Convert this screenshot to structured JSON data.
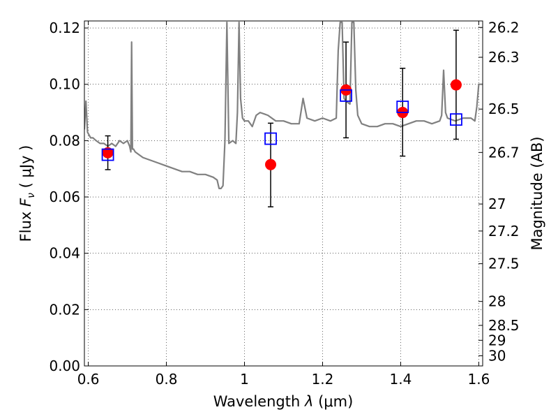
{
  "chart_data": {
    "type": "scatter",
    "title": "",
    "xlabel": "Wavelength  λ (μm)",
    "ylabel": "Flux  F_ν  ( μJy )",
    "ylabel_parts": {
      "pre": "Flux  ",
      "sym": "F",
      "sub": "ν",
      "post": "  ( μJy )"
    },
    "xlabel_parts": {
      "pre": "Wavelength  ",
      "sym": "λ",
      "post": " (μm)"
    },
    "y2label": "Magnitude (AB)",
    "xlim": [
      0.59,
      1.61
    ],
    "ylim": [
      0.0,
      0.1225
    ],
    "grid": true,
    "x_ticks": [
      0.6,
      0.8,
      1.0,
      1.2,
      1.4,
      1.6
    ],
    "x_tick_labels": [
      "0.6",
      "0.8",
      "1",
      "1.2",
      "1.4",
      "1.6"
    ],
    "y_ticks": [
      0.0,
      0.02,
      0.04,
      0.06,
      0.08,
      0.1,
      0.12
    ],
    "y_tick_labels": [
      "0.00",
      "0.02",
      "0.04",
      "0.06",
      "0.08",
      "0.10",
      "0.12"
    ],
    "mag_ticks": [
      {
        "flux": 0.1202,
        "label": "26.2"
      },
      {
        "flux": 0.1096,
        "label": "26.3"
      },
      {
        "flux": 0.0912,
        "label": "26.5"
      },
      {
        "flux": 0.0758,
        "label": "26.7"
      },
      {
        "flux": 0.0575,
        "label": "27"
      },
      {
        "flux": 0.0479,
        "label": "27.2"
      },
      {
        "flux": 0.0363,
        "label": "27.5"
      },
      {
        "flux": 0.0229,
        "label": "28"
      },
      {
        "flux": 0.0144,
        "label": "28.5"
      },
      {
        "flux": 0.0091,
        "label": "29"
      },
      {
        "flux": 0.0036,
        "label": "30"
      }
    ],
    "series": [
      {
        "type": "line",
        "color": "#808080",
        "x": [
          0.59,
          0.594,
          0.598,
          0.602,
          0.606,
          0.612,
          0.62,
          0.63,
          0.64,
          0.65,
          0.66,
          0.67,
          0.68,
          0.69,
          0.7,
          0.706,
          0.709,
          0.711,
          0.713,
          0.716,
          0.72,
          0.73,
          0.74,
          0.76,
          0.78,
          0.8,
          0.82,
          0.84,
          0.86,
          0.88,
          0.9,
          0.92,
          0.93,
          0.935,
          0.94,
          0.945,
          0.95,
          0.955,
          0.96,
          0.97,
          0.978,
          0.982,
          0.986,
          0.99,
          0.995,
          1.0,
          1.01,
          1.02,
          1.03,
          1.04,
          1.06,
          1.08,
          1.1,
          1.12,
          1.14,
          1.15,
          1.16,
          1.18,
          1.2,
          1.22,
          1.235,
          1.24,
          1.245,
          1.25,
          1.255,
          1.26,
          1.27,
          1.275,
          1.28,
          1.285,
          1.29,
          1.3,
          1.32,
          1.34,
          1.36,
          1.38,
          1.4,
          1.42,
          1.44,
          1.46,
          1.48,
          1.5,
          1.505,
          1.51,
          1.515,
          1.52,
          1.54,
          1.56,
          1.58,
          1.59,
          1.595,
          1.6,
          1.605,
          1.61
        ],
        "y": [
          0.084,
          0.094,
          0.083,
          0.082,
          0.081,
          0.081,
          0.08,
          0.079,
          0.079,
          0.078,
          0.079,
          0.078,
          0.08,
          0.079,
          0.08,
          0.078,
          0.076,
          0.115,
          0.077,
          0.077,
          0.076,
          0.075,
          0.074,
          0.073,
          0.072,
          0.071,
          0.07,
          0.069,
          0.069,
          0.068,
          0.068,
          0.067,
          0.066,
          0.063,
          0.063,
          0.064,
          0.08,
          0.122,
          0.079,
          0.08,
          0.079,
          0.09,
          0.122,
          0.095,
          0.088,
          0.087,
          0.087,
          0.085,
          0.089,
          0.09,
          0.089,
          0.087,
          0.087,
          0.086,
          0.086,
          0.095,
          0.088,
          0.087,
          0.088,
          0.087,
          0.088,
          0.112,
          0.122,
          0.122,
          0.095,
          0.094,
          0.093,
          0.122,
          0.122,
          0.098,
          0.089,
          0.086,
          0.085,
          0.085,
          0.086,
          0.086,
          0.085,
          0.086,
          0.087,
          0.087,
          0.086,
          0.087,
          0.089,
          0.105,
          0.09,
          0.088,
          0.087,
          0.088,
          0.088,
          0.087,
          0.092,
          0.1,
          0.1,
          0.1
        ]
      },
      {
        "type": "errorbar",
        "color": "#ff0000",
        "marker": "circle",
        "x": [
          0.65,
          1.067,
          1.26,
          1.405,
          1.542
        ],
        "y": [
          0.0757,
          0.0715,
          0.098,
          0.09,
          0.0998
        ],
        "yerr_low": [
          0.0697,
          0.0565,
          0.081,
          0.0745,
          0.0805
        ],
        "yerr_high": [
          0.0817,
          0.0862,
          0.115,
          0.1057,
          0.1192
        ]
      },
      {
        "type": "scatter",
        "color": "#0000ff",
        "marker": "square-open",
        "x": [
          0.65,
          1.067,
          1.26,
          1.405,
          1.542
        ],
        "y": [
          0.075,
          0.0807,
          0.096,
          0.092,
          0.0875
        ]
      }
    ]
  }
}
